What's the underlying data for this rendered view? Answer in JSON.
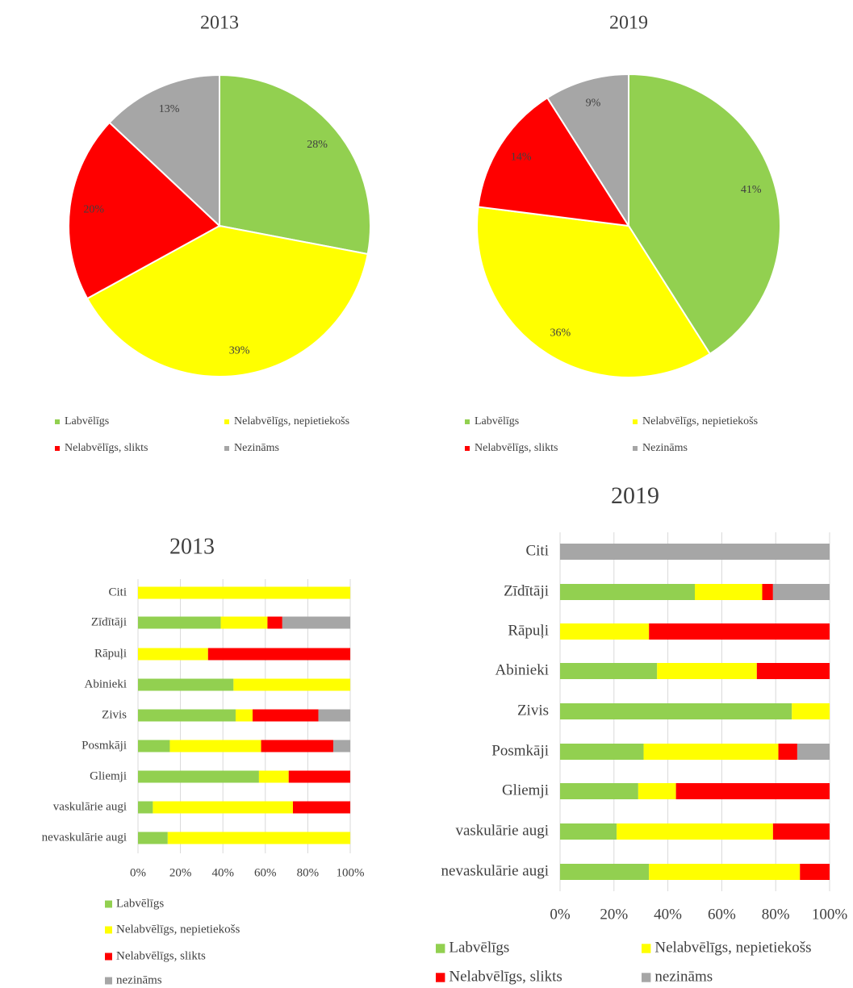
{
  "chart_data": [
    {
      "type": "pie",
      "title": "2013",
      "categories": [
        "Labvēlīgs",
        "Nelabvēlīgs, nepietiekošs",
        "Nelabvēlīgs, slikts",
        "Nezināms"
      ],
      "values": [
        28,
        39,
        20,
        13
      ],
      "value_labels": [
        "28%",
        "39%",
        "20%",
        "13%"
      ],
      "colors": [
        "#92d050",
        "#ffff00",
        "#ff0000",
        "#a6a6a6"
      ],
      "legend": "bottom"
    },
    {
      "type": "pie",
      "title": "2019",
      "categories": [
        "Labvēlīgs",
        "Nelabvēlīgs, nepietiekošs",
        "Nelabvēlīgs, slikts",
        "Nezināms"
      ],
      "values": [
        41,
        36,
        14,
        9
      ],
      "value_labels": [
        "41%",
        "36%",
        "14%",
        "9%"
      ],
      "colors": [
        "#92d050",
        "#ffff00",
        "#ff0000",
        "#a6a6a6"
      ],
      "legend": "bottom"
    },
    {
      "type": "stacked_barh",
      "title": "2013",
      "categories": [
        "Citi",
        "Zīdītāji",
        "Rāpuļi",
        "Abinieki",
        "Zivis",
        "Posmkāji",
        "Gliemji",
        "vaskulārie augi",
        "nevaskulārie augi"
      ],
      "series": [
        {
          "name": "Labvēlīgs",
          "color": "#92d050",
          "values": [
            0,
            39,
            0,
            45,
            46,
            15,
            57,
            7,
            14
          ]
        },
        {
          "name": "Nelabvēlīgs, nepietiekošs",
          "color": "#ffff00",
          "values": [
            100,
            22,
            33,
            55,
            8,
            43,
            14,
            66,
            86
          ]
        },
        {
          "name": "Nelabvēlīgs, slikts",
          "color": "#ff0000",
          "values": [
            0,
            7,
            67,
            0,
            31,
            34,
            29,
            27,
            0
          ]
        },
        {
          "name": "nezināms",
          "color": "#a6a6a6",
          "values": [
            0,
            32,
            0,
            0,
            15,
            8,
            0,
            0,
            0
          ]
        }
      ],
      "xlim": [
        0,
        100
      ],
      "xticks": [
        {
          "value": 0,
          "label": "0%"
        },
        {
          "value": 20,
          "label": "20%"
        },
        {
          "value": 40,
          "label": "40%"
        },
        {
          "value": 60,
          "label": "60%"
        },
        {
          "value": 80,
          "label": "80%"
        },
        {
          "value": 100,
          "label": "100%"
        }
      ],
      "grid": true,
      "legend": "bottom"
    },
    {
      "type": "stacked_barh",
      "title": "2019",
      "categories": [
        "Citi",
        "Zīdītāji",
        "Rāpuļi",
        "Abinieki",
        "Zivis",
        "Posmkāji",
        "Gliemji",
        "vaskulārie augi",
        "nevaskulārie augi"
      ],
      "series": [
        {
          "name": "Labvēlīgs",
          "color": "#92d050",
          "values": [
            0,
            50,
            0,
            36,
            86,
            31,
            29,
            21,
            33
          ]
        },
        {
          "name": "Nelabvēlīgs, nepietiekošs",
          "color": "#ffff00",
          "values": [
            0,
            25,
            33,
            37,
            14,
            50,
            14,
            58,
            56
          ]
        },
        {
          "name": "Nelabvēlīgs, slikts",
          "color": "#ff0000",
          "values": [
            0,
            4,
            67,
            27,
            0,
            7,
            57,
            21,
            11
          ]
        },
        {
          "name": "nezināms",
          "color": "#a6a6a6",
          "values": [
            100,
            21,
            0,
            0,
            0,
            12,
            0,
            0,
            0
          ]
        }
      ],
      "xlim": [
        0,
        100
      ],
      "xticks": [
        {
          "value": 0,
          "label": "0%"
        },
        {
          "value": 20,
          "label": "20%"
        },
        {
          "value": 40,
          "label": "40%"
        },
        {
          "value": 60,
          "label": "60%"
        },
        {
          "value": 80,
          "label": "80%"
        },
        {
          "value": 100,
          "label": "100%"
        }
      ],
      "grid": true,
      "legend": "bottom"
    }
  ]
}
